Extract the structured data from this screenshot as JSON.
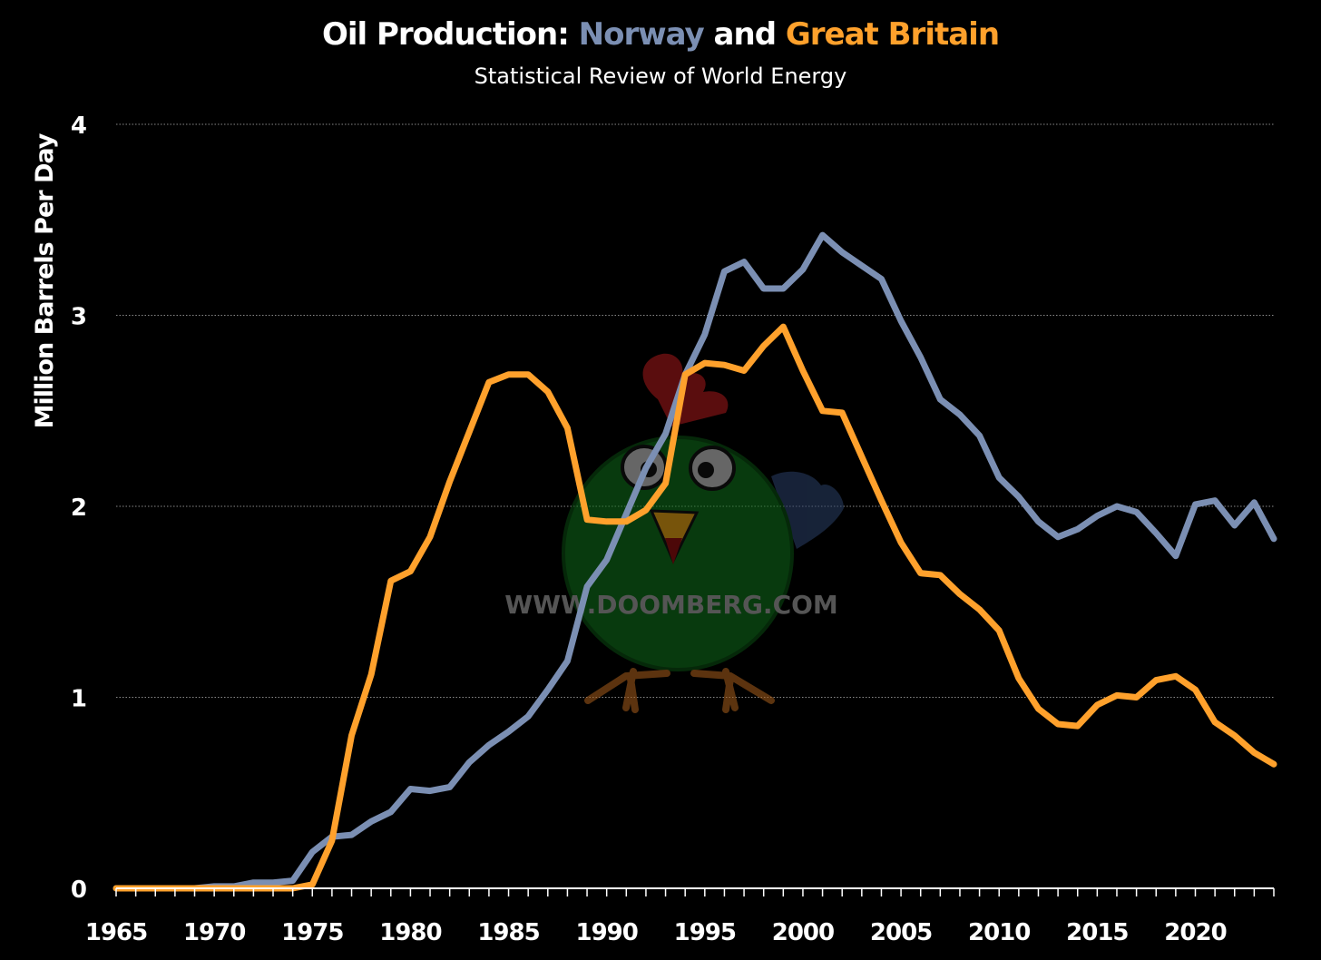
{
  "title": {
    "prefix": "Oil Production: ",
    "norway": "Norway",
    "mid": " and ",
    "britain": "Great Britain"
  },
  "subtitle": "Statistical Review of World Energy",
  "watermark": {
    "text": "WWW.DOOMBERG.COM",
    "icon": "chicken-mascot-icon"
  },
  "colors": {
    "norway": "#7b8fb3",
    "britain": "#ffa12c",
    "grid": "#888888",
    "background": "#000000"
  },
  "chart_data": {
    "type": "line",
    "title": "Oil Production: Norway and Great Britain",
    "subtitle": "Statistical Review of World Energy",
    "xlabel": "",
    "ylabel": "Million Barrels Per Day",
    "xlim": [
      1965,
      2024
    ],
    "ylim": [
      0,
      4
    ],
    "x_ticks": [
      1965,
      1970,
      1975,
      1980,
      1985,
      1990,
      1995,
      2000,
      2005,
      2010,
      2015,
      2020
    ],
    "y_ticks": [
      0,
      1,
      2,
      3,
      4
    ],
    "grid": "horizontal dotted",
    "x": [
      1965,
      1966,
      1967,
      1968,
      1969,
      1970,
      1971,
      1972,
      1973,
      1974,
      1975,
      1976,
      1977,
      1978,
      1979,
      1980,
      1981,
      1982,
      1983,
      1984,
      1985,
      1986,
      1987,
      1988,
      1989,
      1990,
      1991,
      1992,
      1993,
      1994,
      1995,
      1996,
      1997,
      1998,
      1999,
      2000,
      2001,
      2002,
      2003,
      2004,
      2005,
      2006,
      2007,
      2008,
      2009,
      2010,
      2011,
      2012,
      2013,
      2014,
      2015,
      2016,
      2017,
      2018,
      2019,
      2020,
      2021,
      2022,
      2023,
      2024
    ],
    "series": [
      {
        "name": "Norway",
        "color": "#7b8fb3",
        "values": [
          0,
          0,
          0,
          0,
          0,
          0.01,
          0.01,
          0.03,
          0.03,
          0.04,
          0.19,
          0.27,
          0.28,
          0.35,
          0.4,
          0.52,
          0.51,
          0.53,
          0.66,
          0.75,
          0.82,
          0.9,
          1.04,
          1.19,
          1.58,
          1.72,
          1.96,
          2.2,
          2.38,
          2.69,
          2.9,
          3.23,
          3.28,
          3.14,
          3.14,
          3.24,
          3.42,
          3.33,
          3.26,
          3.19,
          2.97,
          2.78,
          2.56,
          2.48,
          2.37,
          2.15,
          2.05,
          1.92,
          1.84,
          1.88,
          1.95,
          2.0,
          1.97,
          1.86,
          1.74,
          2.01,
          2.03,
          1.9,
          2.02,
          1.83
        ]
      },
      {
        "name": "Great Britain",
        "color": "#ffa12c",
        "values": [
          0,
          0,
          0,
          0,
          0,
          0,
          0,
          0,
          0,
          0,
          0.02,
          0.25,
          0.8,
          1.12,
          1.61,
          1.66,
          1.84,
          2.13,
          2.39,
          2.65,
          2.69,
          2.69,
          2.6,
          2.41,
          1.93,
          1.92,
          1.92,
          1.98,
          2.12,
          2.69,
          2.75,
          2.74,
          2.71,
          2.84,
          2.94,
          2.71,
          2.5,
          2.49,
          2.26,
          2.03,
          1.81,
          1.65,
          1.64,
          1.54,
          1.46,
          1.35,
          1.1,
          0.94,
          0.86,
          0.85,
          0.96,
          1.01,
          1.0,
          1.09,
          1.11,
          1.04,
          0.87,
          0.8,
          0.71,
          0.65
        ]
      }
    ]
  }
}
